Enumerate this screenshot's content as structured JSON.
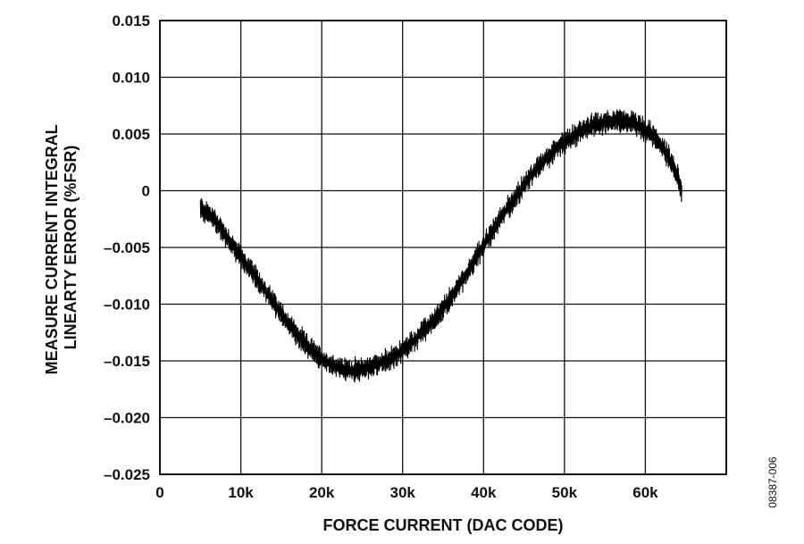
{
  "chart_data": {
    "type": "line",
    "title": "",
    "xlabel": "FORCE CURRENT (DAC CODE)",
    "ylabel": [
      "MEASURE CURRENT INTEGRAL",
      "LINEARTY ERROR (%FSR)"
    ],
    "xlim": [
      0,
      70000
    ],
    "ylim": [
      -0.025,
      0.015
    ],
    "x_ticks": [
      {
        "value": 0,
        "label": "0"
      },
      {
        "value": 10000,
        "label": "10k"
      },
      {
        "value": 20000,
        "label": "20k"
      },
      {
        "value": 30000,
        "label": "30k"
      },
      {
        "value": 40000,
        "label": "40k"
      },
      {
        "value": 50000,
        "label": "50k"
      },
      {
        "value": 60000,
        "label": "60k"
      }
    ],
    "y_ticks": [
      {
        "value": 0.015,
        "label": "0.015"
      },
      {
        "value": 0.01,
        "label": "0.010"
      },
      {
        "value": 0.005,
        "label": "0.005"
      },
      {
        "value": 0,
        "label": "0"
      },
      {
        "value": -0.005,
        "label": "–0.005"
      },
      {
        "value": -0.01,
        "label": "–0.010"
      },
      {
        "value": -0.015,
        "label": "–0.015"
      },
      {
        "value": -0.02,
        "label": "–0.020"
      },
      {
        "value": -0.025,
        "label": "–0.025"
      }
    ],
    "grid": true,
    "series": [
      {
        "color": "#000000",
        "x": [
          5000,
          6000,
          7000,
          8000,
          9000,
          10000,
          11000,
          12000,
          13000,
          14000,
          15000,
          16000,
          17000,
          18000,
          19000,
          20000,
          21000,
          22000,
          23000,
          24000,
          25000,
          26000,
          27000,
          28000,
          29000,
          30000,
          31000,
          32000,
          33000,
          34000,
          35000,
          36000,
          37000,
          38000,
          39000,
          40000,
          41000,
          42000,
          43000,
          44000,
          45000,
          46000,
          47000,
          48000,
          49000,
          50000,
          51000,
          52000,
          53000,
          54000,
          55000,
          56000,
          57000,
          58000,
          59000,
          60000,
          61000,
          62000,
          63000,
          64000,
          64500
        ],
        "y": [
          -0.0015,
          -0.002,
          -0.0028,
          -0.0038,
          -0.0048,
          -0.0058,
          -0.0068,
          -0.0078,
          -0.0088,
          -0.0098,
          -0.0108,
          -0.0118,
          -0.0127,
          -0.0135,
          -0.0142,
          -0.0148,
          -0.0153,
          -0.0156,
          -0.0158,
          -0.0158,
          -0.0157,
          -0.0155,
          -0.0153,
          -0.015,
          -0.0146,
          -0.0141,
          -0.0135,
          -0.0128,
          -0.0121,
          -0.0113,
          -0.0104,
          -0.0094,
          -0.0083,
          -0.0072,
          -0.006,
          -0.0048,
          -0.0037,
          -0.0026,
          -0.0015,
          -0.0005,
          0.0005,
          0.0014,
          0.0022,
          0.003,
          0.0037,
          0.0043,
          0.0048,
          0.0052,
          0.0056,
          0.0059,
          0.0061,
          0.0062,
          0.0062,
          0.0061,
          0.0058,
          0.0054,
          0.0048,
          0.0039,
          0.0028,
          0.0013,
          -0.0002
        ],
        "noise_amplitude": 0.0012
      }
    ]
  },
  "figure_id": "08387-006"
}
